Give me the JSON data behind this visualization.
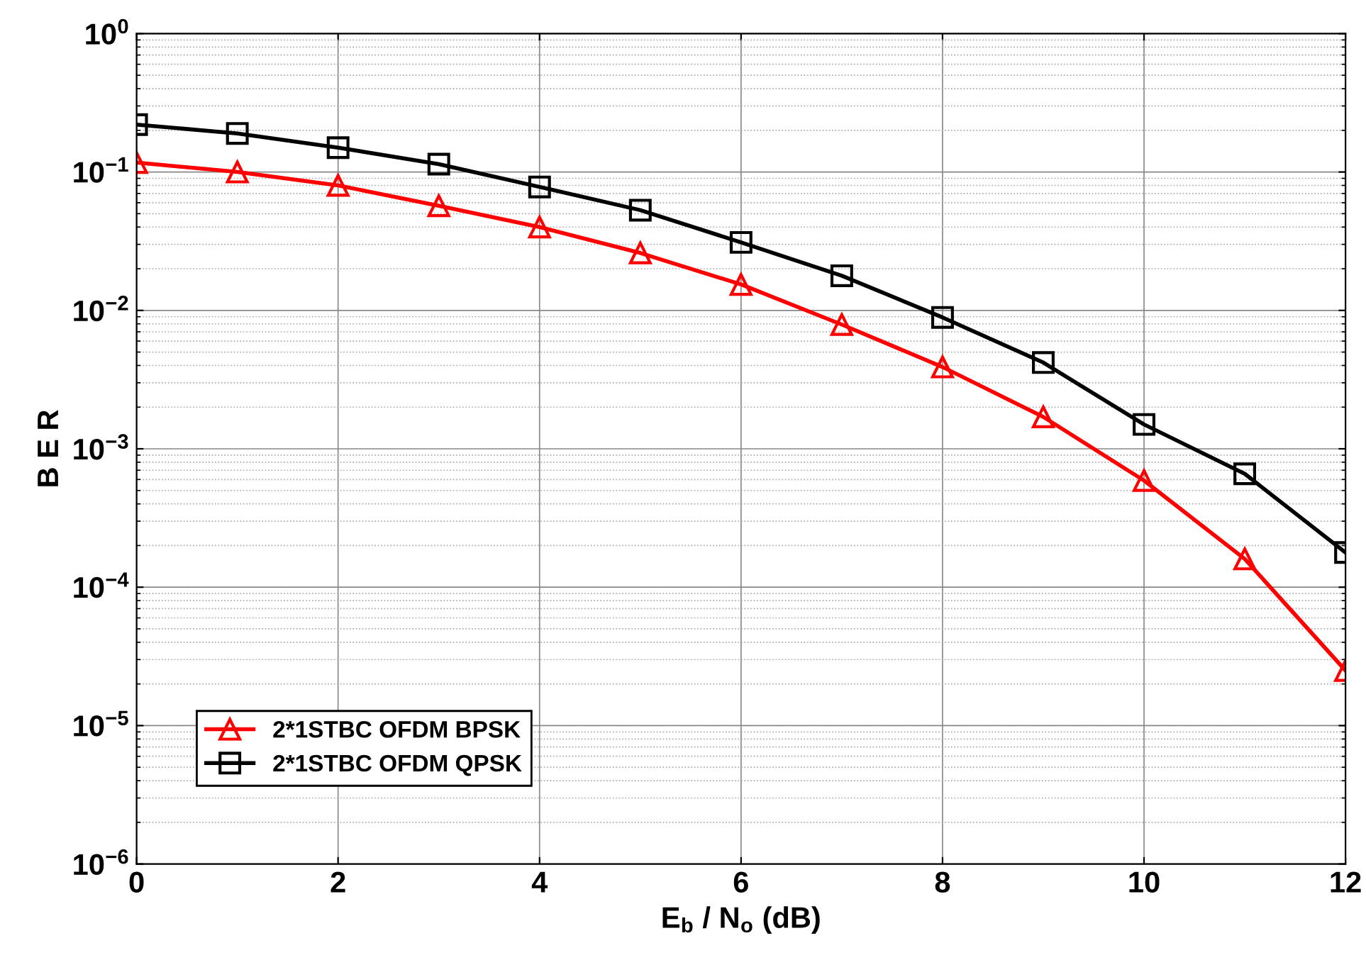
{
  "chart_data": {
    "type": "line",
    "xlabel": "E$_{b}$ / N$_{o}$ (dB)",
    "ylabel": "B E R",
    "log": "y",
    "x": [
      0,
      1,
      2,
      3,
      4,
      5,
      6,
      7,
      8,
      9,
      10,
      11,
      12
    ],
    "series": [
      {
        "name": "2*1STBC OFDM BPSK",
        "color": "#ff0000",
        "marker": "triangle",
        "values": [
          0.117,
          0.1,
          0.08,
          0.057,
          0.04,
          0.026,
          0.0154,
          0.0079,
          0.0039,
          0.0017,
          0.00059,
          0.00016,
          2.5e-05
        ]
      },
      {
        "name": "2*1STBC OFDM QPSK",
        "color": "#000000",
        "marker": "square",
        "values": [
          0.22,
          0.19,
          0.15,
          0.114,
          0.078,
          0.053,
          0.031,
          0.0178,
          0.0089,
          0.0042,
          0.0015,
          0.00066,
          0.000178
        ]
      }
    ],
    "xlim": [
      0,
      12
    ],
    "xticks": [
      0,
      2,
      4,
      6,
      8,
      10,
      12
    ],
    "ylim": [
      1e-06,
      1
    ],
    "yticks": [
      {
        "value": 1e-06,
        "label": "10$^{−6}$"
      },
      {
        "value": 1e-05,
        "label": "10$^{−5}$"
      },
      {
        "value": 0.0001,
        "label": "10$^{−4}$"
      },
      {
        "value": 0.001,
        "label": "10$^{−3}$"
      },
      {
        "value": 0.01,
        "label": "10$^{−2}$"
      },
      {
        "value": 0.1,
        "label": "10$^{−1}$"
      },
      {
        "value": 1,
        "label": "10$^{0}$"
      }
    ],
    "grid": true,
    "legend": "bottom left",
    "line_style": "solid"
  }
}
